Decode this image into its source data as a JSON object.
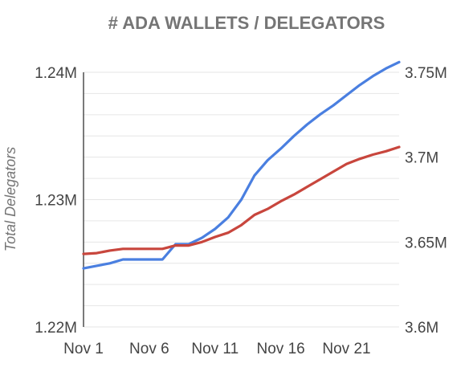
{
  "chart_data": {
    "type": "line",
    "title": "# ADA WALLETS / DELEGATORS",
    "xlabel": "",
    "ylabel": "Total Delegators",
    "y2label": "",
    "x_tick_labels": [
      "Nov 1",
      "Nov 6",
      "Nov 11",
      "Nov 16",
      "Nov 21"
    ],
    "y_tick_labels": [
      "1.22M",
      "1.23M",
      "1.24M"
    ],
    "y2_tick_labels": [
      "3.6M",
      "3.65M",
      "3.7M",
      "3.75M"
    ],
    "ylim": [
      1220000,
      1240000
    ],
    "y2lim": [
      3600000,
      3750000
    ],
    "xlim": [
      1,
      25
    ],
    "grid": true,
    "legend": "none",
    "x": [
      1,
      2,
      3,
      4,
      5,
      6,
      7,
      8,
      9,
      10,
      11,
      12,
      13,
      14,
      15,
      16,
      17,
      18,
      19,
      20,
      21,
      22,
      23,
      24,
      25
    ],
    "series": [
      {
        "color": "#4a7fe0",
        "axis": "left",
        "values": [
          1224600,
          1224800,
          1225000,
          1225300,
          1225300,
          1225300,
          1225300,
          1226500,
          1226500,
          1227000,
          1227700,
          1228600,
          1230000,
          1231900,
          1233100,
          1234000,
          1235000,
          1235900,
          1236700,
          1237400,
          1238200,
          1239000,
          1239700,
          1240300,
          1240800
        ]
      },
      {
        "color": "#c8463d",
        "axis": "right",
        "values": [
          3643000,
          3643500,
          3645000,
          3646000,
          3646000,
          3646000,
          3646000,
          3648000,
          3648000,
          3650000,
          3653000,
          3655500,
          3660000,
          3666000,
          3669500,
          3674000,
          3678000,
          3682500,
          3687000,
          3691500,
          3696000,
          3699000,
          3701500,
          3703500,
          3706000
        ]
      }
    ]
  }
}
